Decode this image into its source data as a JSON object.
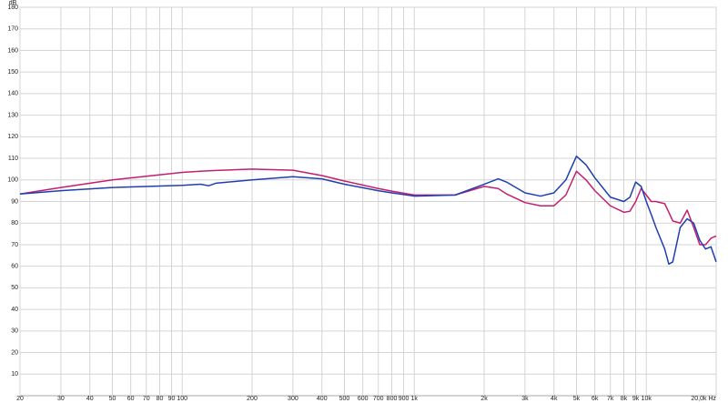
{
  "chart_data": {
    "type": "line",
    "y_label": "dB",
    "log_x": true,
    "grid": true,
    "x": [
      20,
      30,
      50,
      100,
      120,
      130,
      140,
      200,
      300,
      400,
      500,
      700,
      800,
      1000,
      1500,
      2000,
      2300,
      2500,
      3000,
      3500,
      4000,
      4500,
      5000,
      5500,
      6000,
      7000,
      8000,
      8500,
      9000,
      9500,
      10000,
      10500,
      11000,
      12000,
      12500,
      13000,
      14000,
      15000,
      16000,
      17000,
      18000,
      19000,
      20000
    ],
    "series": [
      {
        "color": "#c41e6e",
        "values": [
          93.5,
          96.5,
          100,
          103.5,
          104,
          104.2,
          104.4,
          105,
          104.5,
          102,
          99.5,
          96,
          94.8,
          93,
          93,
          97,
          96,
          93.5,
          89.5,
          88,
          88,
          93,
          104,
          100,
          95,
          88,
          85,
          85.5,
          90,
          96,
          93,
          90,
          90,
          89,
          85,
          81,
          80,
          86,
          78,
          70,
          70,
          73,
          74
        ]
      },
      {
        "color": "#1f3fb0",
        "values": [
          93.5,
          95,
          96.5,
          97.5,
          98,
          97.3,
          98.5,
          100,
          101.5,
          100.5,
          98,
          95,
          94,
          92.5,
          93,
          98,
          100.5,
          99,
          94,
          92.5,
          94,
          100,
          111,
          107,
          101,
          92,
          90,
          92,
          99,
          97,
          90,
          84,
          78,
          68,
          61,
          62,
          78,
          82,
          80,
          72,
          68,
          69,
          62
        ]
      }
    ],
    "xlim": [
      20,
      20000
    ],
    "xticks": [
      20,
      30,
      40,
      50,
      60,
      70,
      80,
      90,
      100,
      200,
      300,
      400,
      500,
      600,
      700,
      800,
      900,
      {
        "value": 1000,
        "label": "1k"
      },
      {
        "value": 2000,
        "label": "2k"
      },
      {
        "value": 3000,
        "label": "3k"
      },
      {
        "value": 4000,
        "label": "4k"
      },
      {
        "value": 5000,
        "label": "5k"
      },
      {
        "value": 6000,
        "label": "6k"
      },
      {
        "value": 7000,
        "label": "7k"
      },
      {
        "value": 8000,
        "label": "8k"
      },
      {
        "value": 9000,
        "label": "9k"
      },
      {
        "value": 10000,
        "label": "10k"
      },
      {
        "value": 20000,
        "label": "20,0k Hz"
      }
    ],
    "ylim": [
      0,
      180
    ],
    "yticks": [
      10,
      20,
      30,
      40,
      50,
      60,
      70,
      80,
      90,
      100,
      110,
      120,
      130,
      140,
      150,
      160,
      170,
      180
    ]
  }
}
